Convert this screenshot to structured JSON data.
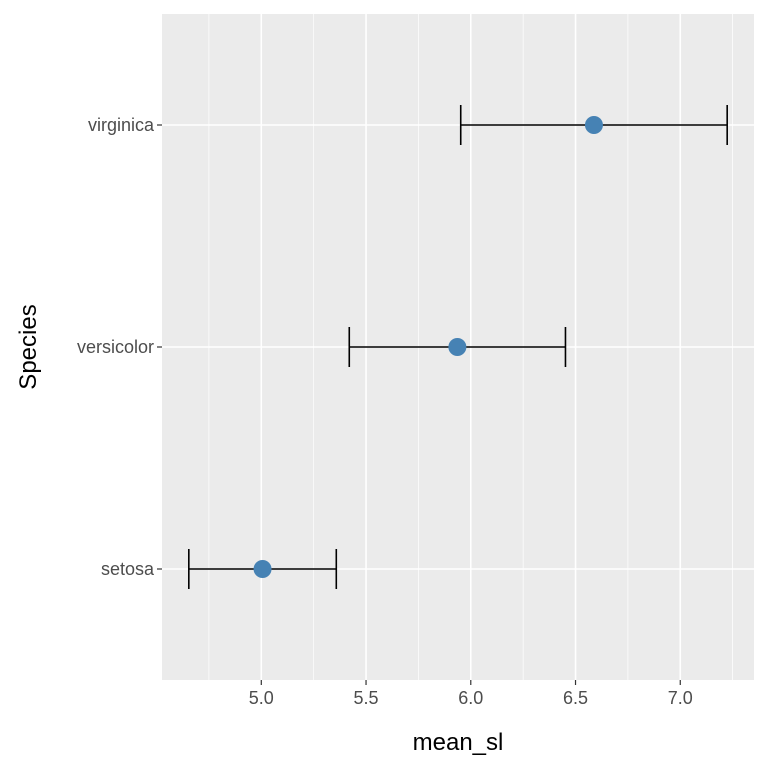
{
  "chart_data": {
    "type": "errorbar",
    "xlabel": "mean_sl",
    "ylabel": "Species",
    "categories": [
      "setosa",
      "versicolor",
      "virginica"
    ],
    "points": [
      {
        "category": "setosa",
        "mean": 5.006,
        "lower": 4.654,
        "upper": 5.358
      },
      {
        "category": "versicolor",
        "mean": 5.936,
        "lower": 5.42,
        "upper": 6.452
      },
      {
        "category": "virginica",
        "mean": 6.588,
        "lower": 5.952,
        "upper": 7.224
      }
    ],
    "xlim": [
      4.526,
      7.352
    ],
    "xticks": [
      "5.0",
      "5.5",
      "6.0",
      "6.5",
      "7.0"
    ],
    "x_minor_ticks": [
      4.75,
      5.25,
      5.75,
      6.25,
      6.75,
      7.25
    ],
    "grid": true,
    "point_color": "#4682B4",
    "panel_color": "#EBEBEB",
    "grid_color": "#FFFFFF",
    "errorbar_color": "#000000"
  }
}
